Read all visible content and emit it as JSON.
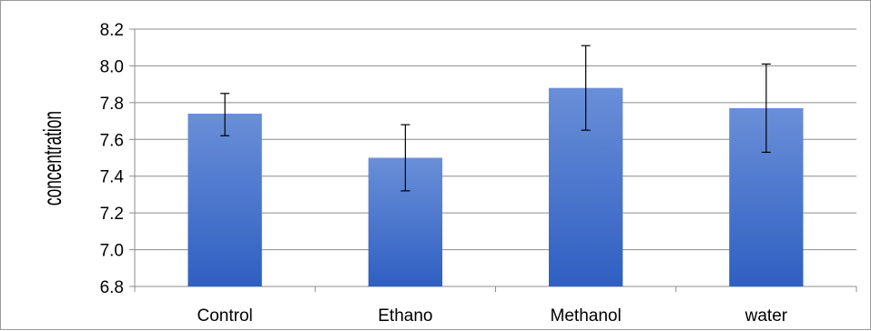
{
  "chart_data": {
    "type": "bar",
    "title": "",
    "xlabel": "",
    "ylabel": "concentration",
    "categories": [
      "Control",
      "Ethano",
      "Methanol",
      "water"
    ],
    "values": [
      7.74,
      7.5,
      7.88,
      7.77
    ],
    "error_low": [
      7.62,
      7.32,
      7.65,
      7.53
    ],
    "error_high": [
      7.85,
      7.68,
      8.11,
      8.01
    ],
    "ylim": [
      6.8,
      8.2
    ],
    "yticks": [
      "6.8",
      "7.0",
      "7.2",
      "7.4",
      "7.6",
      "7.8",
      "8.0",
      "8.2"
    ],
    "grid": true,
    "legend": "none",
    "colors": {
      "bar_top": "#6a8fd8",
      "bar_bottom": "#2e5fc2",
      "grid": "#8c8c8c",
      "axis": "#8c8c8c",
      "error_bar": "#000000"
    }
  }
}
